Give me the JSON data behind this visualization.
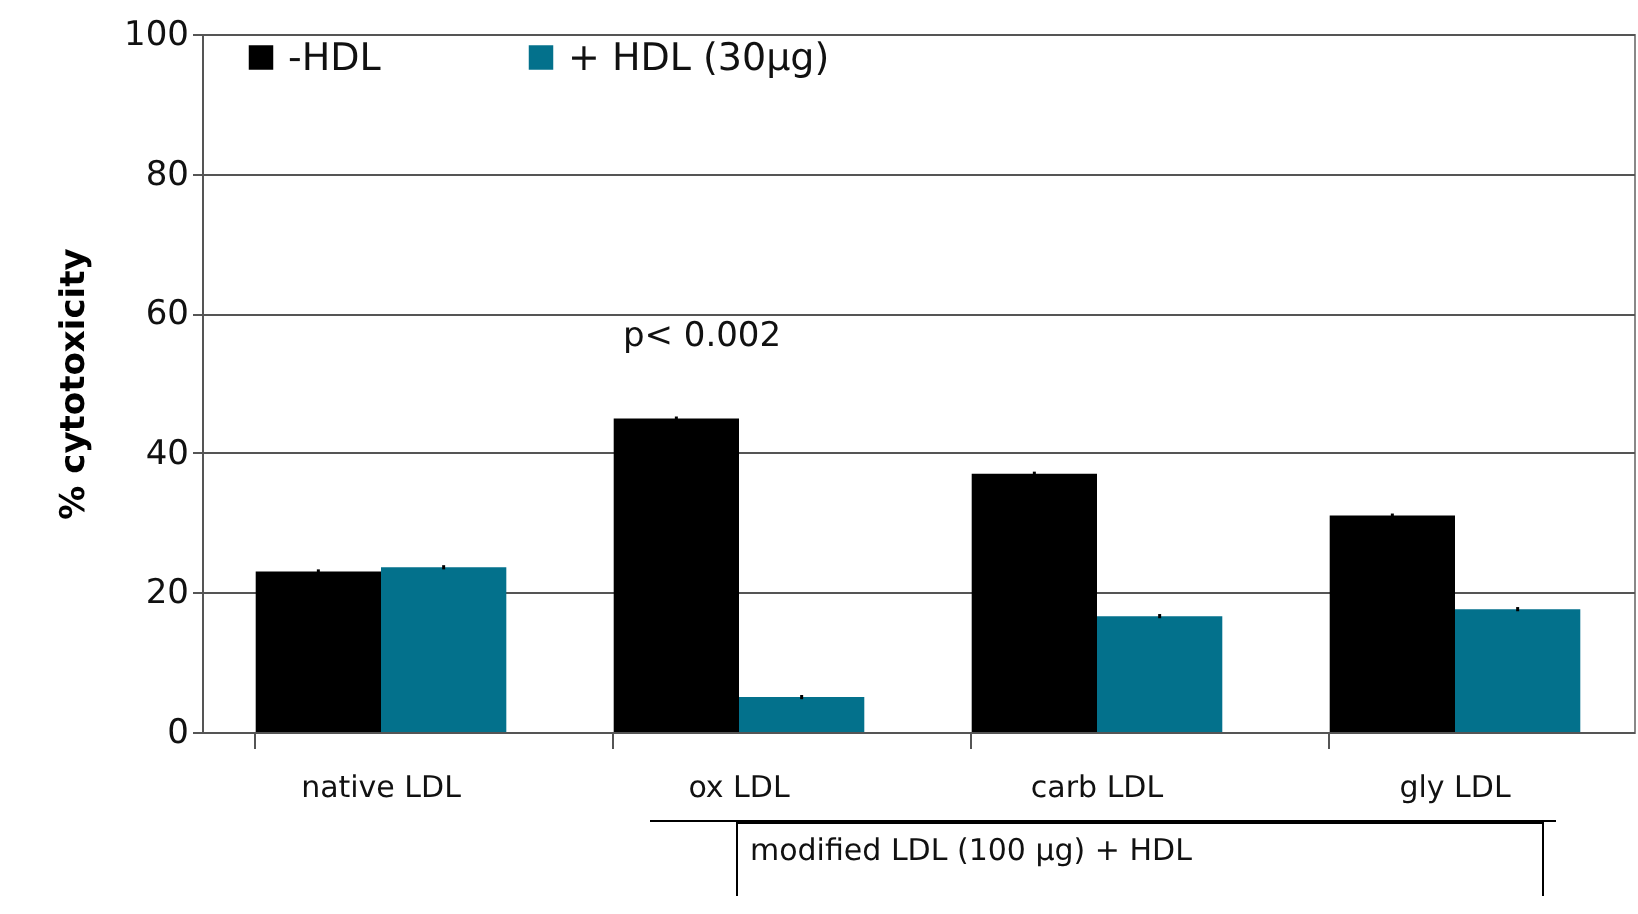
{
  "chart_data": {
    "type": "bar",
    "ylabel": "% cytotoxicity",
    "categories": [
      "native LDL",
      "ox LDL",
      "carb LDL",
      "gly LDL"
    ],
    "series": [
      {
        "name": "-HDL",
        "color": "#000000",
        "values": [
          23.0,
          44.9,
          37.0,
          31.0
        ],
        "errors": [
          0.3,
          0.3,
          0.3,
          0.3
        ]
      },
      {
        "name": "+ HDL (30µg)",
        "color": "#03718c",
        "values": [
          23.6,
          5.0,
          16.6,
          17.6
        ],
        "errors": [
          0.3,
          0.3,
          0.3,
          0.3
        ]
      }
    ],
    "ylim": [
      0,
      100
    ],
    "yticks": [
      0,
      20,
      40,
      60,
      80,
      100
    ],
    "grid": "y",
    "legend": "top left",
    "annotations": [
      "p< 0.002",
      "modified LDL (100 µg) + HDL"
    ]
  }
}
